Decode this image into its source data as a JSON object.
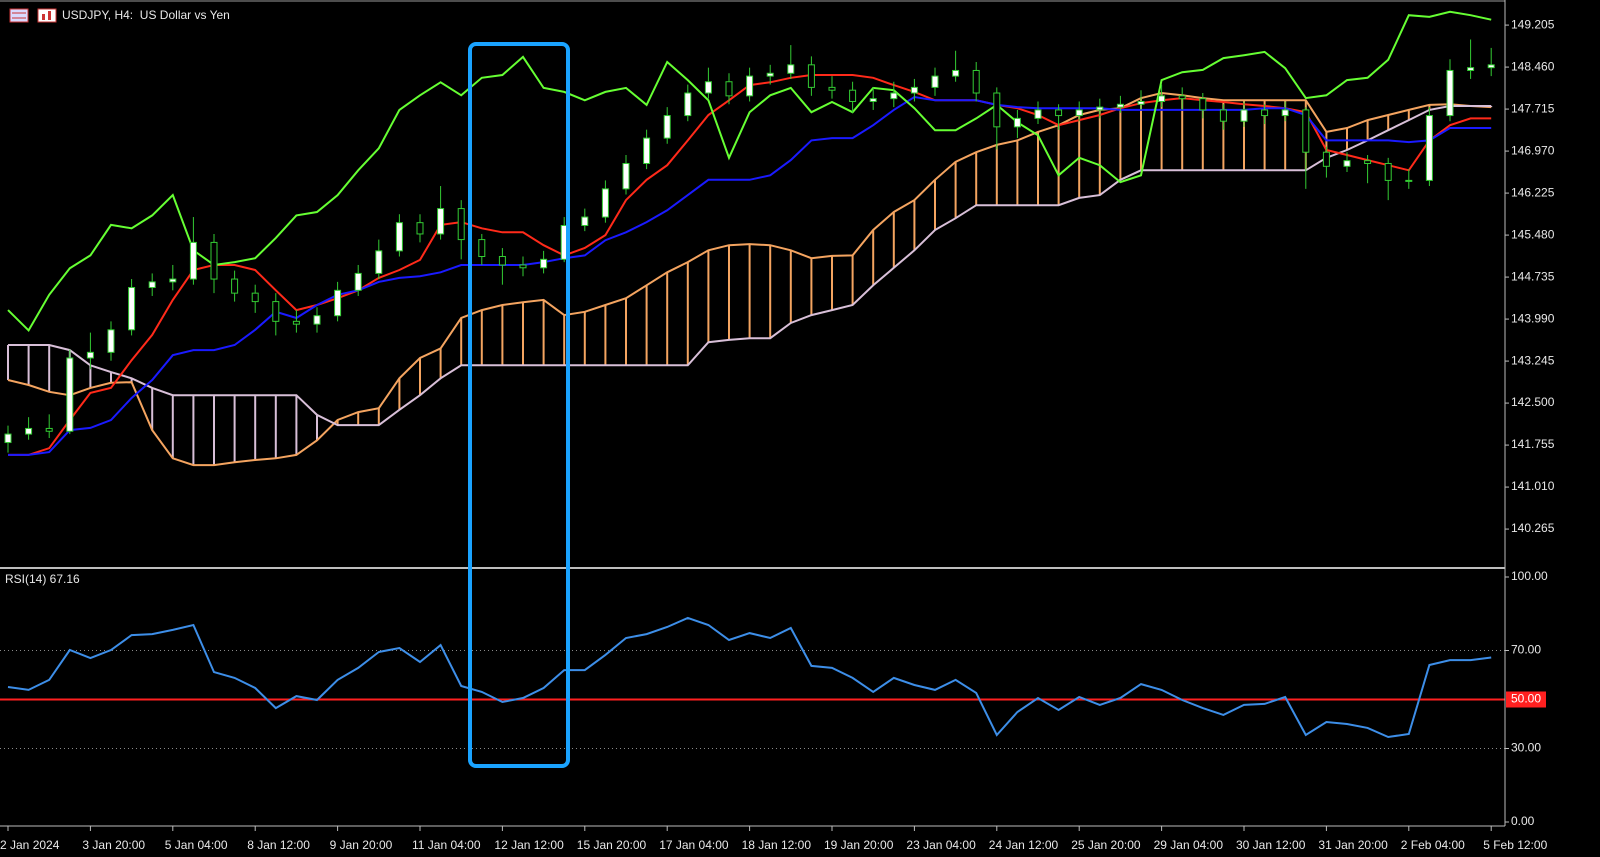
{
  "chart_data": [
    {
      "type": "candlestick",
      "title": "USDJPY, H4:  US Dollar vs Yen",
      "categories": [
        "2 Jan 2024",
        null,
        null,
        null,
        "3 Jan 20:00",
        null,
        null,
        null,
        "5 Jan 04:00",
        null,
        null,
        null,
        "8 Jan 12:00",
        null,
        null,
        null,
        "9 Jan 20:00",
        null,
        null,
        null,
        "11 Jan 04:00",
        null,
        null,
        null,
        "12 Jan 12:00",
        null,
        null,
        null,
        "15 Jan 20:00",
        null,
        null,
        null,
        "17 Jan 04:00",
        null,
        null,
        null,
        "18 Jan 12:00",
        null,
        null,
        null,
        "19 Jan 20:00",
        null,
        null,
        null,
        "23 Jan 04:00",
        null,
        null,
        null,
        "24 Jan 12:00",
        null,
        null,
        null,
        "25 Jan 20:00",
        null,
        null,
        null,
        "29 Jan 04:00",
        null,
        null,
        null,
        "30 Jan 12:00",
        null,
        null,
        null,
        "31 Jan 20:00",
        null,
        null,
        null,
        "2 Feb 04:00",
        null,
        null,
        null,
        "5 Feb 12:00"
      ],
      "ohlc": [
        [
          141.8,
          142.1,
          141.62,
          141.95
        ],
        [
          141.95,
          142.25,
          141.85,
          142.05
        ],
        [
          142.05,
          142.3,
          141.88,
          142.0
        ],
        [
          142.0,
          143.45,
          141.95,
          143.3
        ],
        [
          143.3,
          143.75,
          143.1,
          143.4
        ],
        [
          143.4,
          143.95,
          143.25,
          143.8
        ],
        [
          143.8,
          144.7,
          143.7,
          144.55
        ],
        [
          144.55,
          144.8,
          144.4,
          144.65
        ],
        [
          144.65,
          144.95,
          144.5,
          144.7
        ],
        [
          144.7,
          145.8,
          144.6,
          145.35
        ],
        [
          145.35,
          145.5,
          144.45,
          144.7
        ],
        [
          144.7,
          144.85,
          144.3,
          144.45
        ],
        [
          144.45,
          144.6,
          144.1,
          144.3
        ],
        [
          144.3,
          144.45,
          143.7,
          143.95
        ],
        [
          143.95,
          144.15,
          143.75,
          143.9
        ],
        [
          143.9,
          144.2,
          143.75,
          144.05
        ],
        [
          144.05,
          144.65,
          143.95,
          144.5
        ],
        [
          144.5,
          144.95,
          144.4,
          144.8
        ],
        [
          144.8,
          145.4,
          144.7,
          145.2
        ],
        [
          145.2,
          145.85,
          145.1,
          145.7
        ],
        [
          145.7,
          145.85,
          145.35,
          145.5
        ],
        [
          145.5,
          146.35,
          145.4,
          145.95
        ],
        [
          145.95,
          146.1,
          145.05,
          145.4
        ],
        [
          145.4,
          145.5,
          144.95,
          145.1
        ],
        [
          145.1,
          145.25,
          144.6,
          144.95
        ],
        [
          144.95,
          145.1,
          144.75,
          144.9
        ],
        [
          144.9,
          145.2,
          144.8,
          145.05
        ],
        [
          145.05,
          145.8,
          145.0,
          145.65
        ],
        [
          145.65,
          145.95,
          145.55,
          145.8
        ],
        [
          145.8,
          146.45,
          145.7,
          146.3
        ],
        [
          146.3,
          146.9,
          146.2,
          146.75
        ],
        [
          146.75,
          147.35,
          146.65,
          147.2
        ],
        [
          147.2,
          147.75,
          147.1,
          147.6
        ],
        [
          147.6,
          148.15,
          147.5,
          148.0
        ],
        [
          148.0,
          148.45,
          147.9,
          148.2
        ],
        [
          148.2,
          148.35,
          147.8,
          147.95
        ],
        [
          147.95,
          148.45,
          147.85,
          148.3
        ],
        [
          148.3,
          148.5,
          148.15,
          148.35
        ],
        [
          148.35,
          148.85,
          148.25,
          148.5
        ],
        [
          148.5,
          148.65,
          147.95,
          148.1
        ],
        [
          148.1,
          148.3,
          147.9,
          148.05
        ],
        [
          148.05,
          148.2,
          147.65,
          147.85
        ],
        [
          147.85,
          148.1,
          147.7,
          147.9
        ],
        [
          147.9,
          148.2,
          147.75,
          148.0
        ],
        [
          148.0,
          148.25,
          147.85,
          148.1
        ],
        [
          148.1,
          148.45,
          147.95,
          148.3
        ],
        [
          148.3,
          148.75,
          148.2,
          148.4
        ],
        [
          148.4,
          148.55,
          147.85,
          148.0
        ],
        [
          148.0,
          148.1,
          147.0,
          147.4
        ],
        [
          147.4,
          147.7,
          147.2,
          147.55
        ],
        [
          147.55,
          147.85,
          147.45,
          147.7
        ],
        [
          147.7,
          147.8,
          147.35,
          147.6
        ],
        [
          147.6,
          147.85,
          147.5,
          147.7
        ],
        [
          147.7,
          147.9,
          147.55,
          147.75
        ],
        [
          147.75,
          147.95,
          147.65,
          147.8
        ],
        [
          147.8,
          148.05,
          147.7,
          147.85
        ],
        [
          147.85,
          148.15,
          147.75,
          147.95
        ],
        [
          147.95,
          148.1,
          147.7,
          147.9
        ],
        [
          147.9,
          148.0,
          147.55,
          147.7
        ],
        [
          147.7,
          147.8,
          147.35,
          147.5
        ],
        [
          147.5,
          147.85,
          147.4,
          147.7
        ],
        [
          147.7,
          147.8,
          147.45,
          147.6
        ],
        [
          147.6,
          147.85,
          147.5,
          147.7
        ],
        [
          147.7,
          147.75,
          146.3,
          146.95
        ],
        [
          146.95,
          147.05,
          146.5,
          146.7
        ],
        [
          146.7,
          146.95,
          146.6,
          146.8
        ],
        [
          146.8,
          146.9,
          146.4,
          146.75
        ],
        [
          146.75,
          146.85,
          146.1,
          146.45
        ],
        [
          146.45,
          146.65,
          146.3,
          146.45
        ],
        [
          146.45,
          147.75,
          146.35,
          147.6
        ],
        [
          147.6,
          148.6,
          147.5,
          148.4
        ],
        [
          148.4,
          148.95,
          148.25,
          148.45
        ],
        [
          148.45,
          148.8,
          148.3,
          148.5
        ]
      ],
      "up_color": "#ffffff",
      "down_color": "#000000",
      "wick_color": "#33cc33",
      "lines": [
        {
          "color": "#ff2a1a",
          "values": [
            141.58,
            141.58,
            141.7,
            142.2,
            142.68,
            142.77,
            143.26,
            143.71,
            144.33,
            144.86,
            144.95,
            144.95,
            144.86,
            144.5,
            144.15,
            144.24,
            144.36,
            144.5,
            144.72,
            144.86,
            145.04,
            145.66,
            145.71,
            145.6,
            145.53,
            145.53,
            145.3,
            145.12,
            145.25,
            145.48,
            146.1,
            146.46,
            146.72,
            147.16,
            147.61,
            147.87,
            148.14,
            148.19,
            148.27,
            148.32,
            148.32,
            148.32,
            148.27,
            148.14,
            148.02,
            147.87,
            147.87,
            147.87,
            147.79,
            147.73,
            147.61,
            147.43,
            147.52,
            147.61,
            147.73,
            147.82,
            147.87,
            147.91,
            147.87,
            147.84,
            147.8,
            147.77,
            147.73,
            147.66,
            146.99,
            146.9,
            146.81,
            146.72,
            146.63,
            147.16,
            147.43,
            147.55,
            147.55
          ]
        },
        {
          "color": "#1a1aff",
          "values": [
            141.58,
            141.58,
            141.63,
            142.02,
            142.06,
            142.2,
            142.59,
            142.91,
            143.35,
            143.44,
            143.44,
            143.53,
            143.8,
            144.12,
            144.01,
            144.24,
            144.42,
            144.5,
            144.65,
            144.72,
            144.75,
            144.82,
            144.95,
            144.95,
            144.95,
            144.95,
            145.0,
            145.07,
            145.12,
            145.39,
            145.53,
            145.71,
            145.92,
            146.19,
            146.46,
            146.46,
            146.46,
            146.54,
            146.81,
            147.16,
            147.2,
            147.2,
            147.43,
            147.7,
            147.93,
            147.87,
            147.87,
            147.87,
            147.79,
            147.75,
            147.73,
            147.73,
            147.73,
            147.73,
            147.7,
            147.7,
            147.7,
            147.7,
            147.7,
            147.7,
            147.7,
            147.73,
            147.73,
            147.61,
            147.16,
            147.16,
            147.16,
            147.16,
            147.13,
            147.16,
            147.38,
            147.38,
            147.38
          ]
        },
        {
          "color": "#66ff33",
          "values": [
            144.15,
            143.79,
            144.42,
            144.89,
            145.12,
            145.66,
            145.6,
            145.83,
            146.19,
            145.21,
            144.95,
            145.0,
            145.07,
            145.43,
            145.83,
            145.89,
            146.19,
            146.63,
            147.02,
            147.7,
            147.96,
            148.19,
            147.96,
            148.27,
            148.32,
            148.64,
            148.09,
            148.02,
            147.87,
            148.02,
            148.09,
            147.79,
            148.55,
            148.23,
            147.87,
            146.85,
            147.66,
            147.96,
            148.09,
            147.66,
            147.84,
            147.66,
            148.09,
            148.05,
            147.73,
            147.34,
            147.34,
            147.55,
            147.79,
            147.48,
            147.25,
            146.54,
            146.85,
            146.72,
            146.42,
            146.54,
            148.23,
            148.37,
            148.41,
            148.62,
            148.67,
            148.73,
            148.44,
            147.91,
            147.96,
            148.23,
            148.27,
            148.59,
            149.38,
            149.35,
            149.44,
            149.38,
            149.3
          ]
        }
      ],
      "cloud": {
        "a": {
          "color": "#f4a460",
          "values": [
            142.91,
            142.82,
            142.7,
            142.64,
            142.77,
            142.86,
            142.87,
            142.02,
            141.52,
            141.4,
            141.4,
            141.45,
            141.49,
            141.52,
            141.58,
            141.84,
            142.2,
            142.34,
            142.41,
            142.94,
            143.3,
            143.47,
            144.01,
            144.15,
            144.24,
            144.29,
            144.33,
            144.06,
            144.12,
            144.24,
            144.36,
            144.59,
            144.82,
            145.0,
            145.21,
            145.3,
            145.32,
            145.3,
            145.21,
            145.07,
            145.11,
            145.12,
            145.57,
            145.89,
            146.1,
            146.46,
            146.78,
            146.95,
            147.08,
            147.16,
            147.31,
            147.43,
            147.61,
            147.7,
            147.73,
            147.91,
            148.0,
            147.96,
            147.91,
            147.87,
            147.87,
            147.87,
            147.87,
            147.87,
            147.31,
            147.38,
            147.52,
            147.61,
            147.7,
            147.79,
            147.8,
            147.77,
            147.75
          ]
        },
        "b": {
          "color": "#d8bfd8",
          "values": [
            143.53,
            143.53,
            143.53,
            143.44,
            143.17,
            143.05,
            142.94,
            142.77,
            142.64,
            142.64,
            142.64,
            142.64,
            142.64,
            142.64,
            142.64,
            142.29,
            142.11,
            142.11,
            142.11,
            142.38,
            142.64,
            142.94,
            143.17,
            143.17,
            143.17,
            143.17,
            143.17,
            143.17,
            143.17,
            143.17,
            143.17,
            143.17,
            143.17,
            143.17,
            143.58,
            143.62,
            143.65,
            143.65,
            143.92,
            144.06,
            144.15,
            144.24,
            144.59,
            144.9,
            145.21,
            145.57,
            145.78,
            146.01,
            146.01,
            146.01,
            146.01,
            146.01,
            146.14,
            146.19,
            146.46,
            146.63,
            146.63,
            146.63,
            146.63,
            146.63,
            146.63,
            146.63,
            146.63,
            146.63,
            146.85,
            146.99,
            147.16,
            147.34,
            147.52,
            147.7,
            147.77,
            147.77,
            147.77
          ]
        }
      },
      "ylim": [
        139.61,
        149.65
      ],
      "yticks": [
        149.205,
        {
          "value": 148.46,
          "label": "148.460"
        },
        147.715,
        {
          "value": 146.97,
          "label": "146.970"
        },
        146.225,
        {
          "value": 145.48,
          "label": "145.480"
        },
        144.735,
        {
          "value": 143.99,
          "label": "143.990"
        },
        143.245,
        {
          "value": 142.5,
          "label": "142.500"
        },
        141.755,
        {
          "value": 141.01,
          "label": "141.010"
        },
        140.265
      ],
      "grid": false
    },
    {
      "type": "line",
      "title": "RSI(14) 67.16",
      "color": "#3d8ee8",
      "values": [
        55.1,
        53.9,
        58.0,
        70.2,
        66.9,
        70.2,
        76.3,
        76.7,
        78.4,
        80.4,
        61.2,
        58.8,
        54.7,
        46.5,
        51.4,
        49.8,
        58.0,
        62.9,
        69.4,
        71.0,
        65.3,
        72.2,
        55.5,
        53.1,
        49.0,
        50.6,
        54.7,
        62.0,
        62.0,
        68.2,
        75.1,
        76.7,
        79.6,
        83.3,
        80.4,
        74.3,
        77.1,
        75.1,
        79.2,
        63.7,
        62.9,
        58.8,
        53.1,
        58.8,
        55.9,
        53.9,
        58.0,
        52.7,
        35.5,
        44.9,
        50.6,
        45.7,
        51.0,
        47.8,
        50.6,
        56.3,
        53.9,
        49.8,
        46.5,
        43.7,
        47.8,
        48.2,
        51.0,
        35.5,
        40.8,
        40.0,
        38.4,
        34.7,
        35.9,
        64.1,
        66.1,
        66.1,
        67.16
      ],
      "ylim": [
        0,
        100
      ],
      "yticks": [
        {
          "value": 100,
          "label": "100.00"
        },
        {
          "value": 70,
          "label": "70.00"
        },
        {
          "value": 30,
          "label": "30.00"
        },
        {
          "value": 0,
          "label": "0.00"
        }
      ],
      "level": {
        "value": 50,
        "label": "50.00",
        "color": "#ff2020"
      },
      "grid": true
    }
  ]
}
